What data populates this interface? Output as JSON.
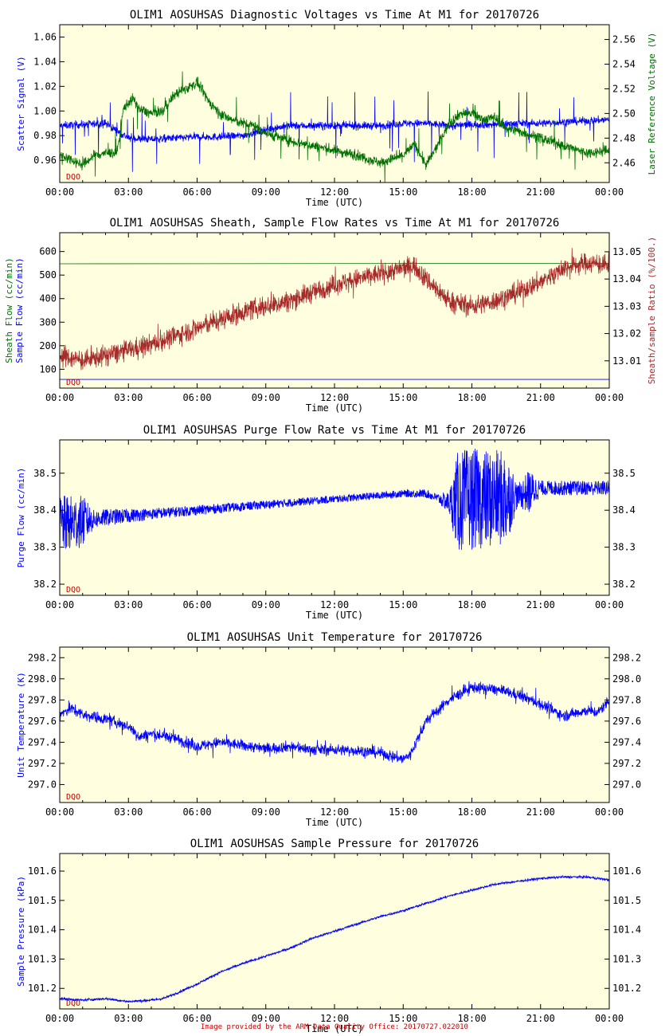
{
  "colors": {
    "plot_bg": "#ffffe0",
    "blue": "#0000ff",
    "green": "#007000",
    "darkred": "#a52a2a",
    "dqo": "#cc0000",
    "axis": "#000000"
  },
  "dqo_label": "DQO",
  "footer": "Image provided by the ARM Data Quality Office: 20170727.022010",
  "x_tick_labels": [
    "00:00",
    "03:00",
    "06:00",
    "09:00",
    "12:00",
    "15:00",
    "18:00",
    "21:00",
    "00:00"
  ],
  "chart_data": [
    {
      "type": "line",
      "title": "OLIM1 AOSUHSAS Diagnostic Voltages vs Time At M1 for 20170726",
      "xlabel": "Time (UTC)",
      "xlim_hours": [
        0,
        24
      ],
      "ylabel_left": "Scatter Signal (V)",
      "ylabel_right": "Laser Reference Voltage (V)",
      "ylim_left": [
        0.942,
        1.07
      ],
      "ylim_right": [
        2.444,
        2.572
      ],
      "yticks_left": [
        0.96,
        0.98,
        1.0,
        1.02,
        1.04,
        1.06
      ],
      "ytick_labels_left": [
        "0.96",
        "0.98",
        "1.00",
        "1.02",
        "1.04",
        "1.06"
      ],
      "yticks_right": [
        2.46,
        2.48,
        2.5,
        2.52,
        2.54,
        2.56
      ],
      "ytick_labels_right": [
        "2.46",
        "2.48",
        "2.50",
        "2.52",
        "2.54",
        "2.56"
      ],
      "series": [
        {
          "name": "Scatter Signal",
          "axis": "left",
          "color": "blue",
          "noise": 0.003,
          "spike": 0.03,
          "spike_rate": 0.03,
          "x": [
            0,
            1,
            2,
            2.5,
            3,
            4,
            5,
            6,
            7,
            8,
            9,
            10,
            12,
            14,
            15,
            16,
            17,
            18,
            19,
            20,
            21,
            22,
            23,
            24
          ],
          "values": [
            0.988,
            0.989,
            0.99,
            0.984,
            0.978,
            0.977,
            0.978,
            0.979,
            0.979,
            0.98,
            0.985,
            0.988,
            0.988,
            0.988,
            0.99,
            0.99,
            0.988,
            0.989,
            0.989,
            0.99,
            0.99,
            0.991,
            0.992,
            0.993
          ]
        },
        {
          "name": "Laser Reference Voltage",
          "axis": "right",
          "color": "green",
          "noise": 0.004,
          "spike": 0.02,
          "spike_rate": 0.02,
          "x": [
            0,
            0.5,
            1,
            1.5,
            2,
            2.5,
            2.8,
            3.2,
            3.5,
            4,
            4.5,
            5,
            5.5,
            6,
            6.5,
            7,
            7.5,
            8,
            8.5,
            9,
            10,
            11,
            12,
            13,
            14,
            15,
            15.5,
            16,
            16.5,
            17,
            17.5,
            18,
            18.5,
            19,
            19.5,
            20,
            21,
            22,
            23,
            24
          ],
          "values": [
            2.466,
            2.463,
            2.458,
            2.466,
            2.468,
            2.468,
            2.505,
            2.512,
            2.503,
            2.5,
            2.502,
            2.515,
            2.52,
            2.525,
            2.51,
            2.5,
            2.495,
            2.492,
            2.49,
            2.484,
            2.478,
            2.474,
            2.47,
            2.466,
            2.46,
            2.466,
            2.475,
            2.458,
            2.474,
            2.492,
            2.5,
            2.5,
            2.495,
            2.497,
            2.488,
            2.486,
            2.48,
            2.474,
            2.468,
            2.47
          ]
        }
      ]
    },
    {
      "type": "line",
      "title": "OLIM1 AOSUHSAS Sheath, Sample Flow Rates vs Time At M1 for 20170726",
      "xlabel": "Time (UTC)",
      "xlim_hours": [
        0,
        24
      ],
      "ylabel_left_lines": [
        {
          "text": "Sheath Flow (cc/min)",
          "color": "green"
        },
        {
          "text": "Sample Flow (cc/min)",
          "color": "blue"
        }
      ],
      "ylabel_right": "Sheath/sample Ratio (%/100.)",
      "ylim_left": [
        20,
        680
      ],
      "ylim_right": [
        13.0,
        13.057
      ],
      "yticks_left": [
        100,
        200,
        300,
        400,
        500,
        600
      ],
      "ytick_labels_left": [
        "100",
        "200",
        "300",
        "400",
        "500",
        "600"
      ],
      "yticks_right": [
        13.01,
        13.02,
        13.03,
        13.04,
        13.05
      ],
      "ytick_labels_right": [
        "13.01",
        "13.02",
        "13.03",
        "13.04",
        "13.05"
      ],
      "series": [
        {
          "name": "Sheath Flow",
          "axis": "left",
          "color": "green",
          "noise": 0,
          "x": [
            0,
            24
          ],
          "values": [
            548,
            550
          ]
        },
        {
          "name": "Sample Flow",
          "axis": "left",
          "color": "blue",
          "noise": 0,
          "x": [
            0,
            24
          ],
          "values": [
            57,
            57
          ]
        },
        {
          "name": "Sheath/sample Ratio",
          "axis": "right",
          "color": "darkred",
          "noise": 0.0035,
          "spike": 0.004,
          "spike_rate": 0.05,
          "x": [
            0,
            1,
            2,
            3,
            4,
            5,
            6,
            7,
            8,
            9,
            10,
            11,
            12,
            13,
            14,
            15,
            15.5,
            16,
            17,
            18,
            19,
            20,
            21,
            22,
            23,
            24
          ],
          "values": [
            13.012,
            13.01,
            13.012,
            13.014,
            13.016,
            13.019,
            13.022,
            13.025,
            13.028,
            13.03,
            13.032,
            13.035,
            13.038,
            13.04,
            13.042,
            13.044,
            13.045,
            13.04,
            13.032,
            13.03,
            13.032,
            13.035,
            13.039,
            13.044,
            13.046,
            13.045
          ]
        }
      ]
    },
    {
      "type": "line",
      "title": "OLIM1 AOSUHSAS Purge Flow Rate vs Time At M1 for 20170726",
      "xlabel": "Time (UTC)",
      "xlim_hours": [
        0,
        24
      ],
      "ylabel_left": "Purge Flow (cc/min)",
      "ylabel_right": "",
      "ylim_left": [
        38.17,
        38.59
      ],
      "yticks_left": [
        38.2,
        38.3,
        38.4,
        38.5
      ],
      "ytick_labels_left": [
        "38.2",
        "38.3",
        "38.4",
        "38.5"
      ],
      "yticks_right": [
        38.2,
        38.3,
        38.4,
        38.5
      ],
      "ytick_labels_right": [
        "38.2",
        "38.3",
        "38.4",
        "38.5"
      ],
      "series": [
        {
          "name": "Purge Flow",
          "axis": "left",
          "color": "blue",
          "x": [
            0,
            1,
            2,
            3,
            4,
            5,
            6,
            7,
            8,
            9,
            10,
            11,
            12,
            13,
            14,
            15,
            16,
            17,
            18,
            19,
            20,
            21,
            22,
            23,
            24
          ],
          "values": [
            38.36,
            38.37,
            38.38,
            38.385,
            38.39,
            38.395,
            38.4,
            38.405,
            38.41,
            38.415,
            38.42,
            38.425,
            38.43,
            38.435,
            38.44,
            38.445,
            38.445,
            38.42,
            38.43,
            38.43,
            38.44,
            38.46,
            38.46,
            38.46,
            38.46
          ],
          "noise_x": [
            0,
            1,
            1.5,
            4,
            8,
            12,
            15,
            16.5,
            17,
            17.4,
            19.5,
            20,
            20.5,
            21,
            22,
            24
          ],
          "noise_values": [
            0.08,
            0.07,
            0.025,
            0.015,
            0.012,
            0.01,
            0.01,
            0.012,
            0.03,
            0.14,
            0.13,
            0.03,
            0.06,
            0.02,
            0.02,
            0.02
          ]
        }
      ]
    },
    {
      "type": "line",
      "title": "OLIM1 AOSUHSAS Unit Temperature for 20170726",
      "xlabel": "Time (UTC)",
      "xlim_hours": [
        0,
        24
      ],
      "ylabel_left": "Unit Temperature (K)",
      "ylabel_right": "",
      "ylim_left": [
        296.83,
        298.3
      ],
      "yticks_left": [
        297.0,
        297.2,
        297.4,
        297.6,
        297.8,
        298.0,
        298.2
      ],
      "ytick_labels_left": [
        "297.0",
        "297.2",
        "297.4",
        "297.6",
        "297.8",
        "298.0",
        "298.2"
      ],
      "yticks_right": [
        297.0,
        297.2,
        297.4,
        297.6,
        297.8,
        298.0,
        298.2
      ],
      "ytick_labels_right": [
        "297.0",
        "297.2",
        "297.4",
        "297.6",
        "297.8",
        "298.0",
        "298.2"
      ],
      "series": [
        {
          "name": "Unit Temperature",
          "axis": "left",
          "color": "blue",
          "noise": 0.05,
          "spike": 0.1,
          "spike_rate": 0.03,
          "x": [
            0,
            0.5,
            1,
            1.5,
            2,
            3,
            3.5,
            4,
            5,
            6,
            7,
            8,
            9,
            10,
            11,
            12,
            13,
            14,
            15,
            15.3,
            16,
            17,
            18,
            19,
            20,
            21,
            22,
            23,
            23.5,
            24
          ],
          "values": [
            297.67,
            297.72,
            297.66,
            297.64,
            297.62,
            297.55,
            297.45,
            297.48,
            297.44,
            297.36,
            297.4,
            297.37,
            297.34,
            297.36,
            297.33,
            297.33,
            297.32,
            297.3,
            297.24,
            297.28,
            297.6,
            297.8,
            297.92,
            297.9,
            297.85,
            297.76,
            297.65,
            297.7,
            297.68,
            297.8
          ]
        }
      ]
    },
    {
      "type": "line",
      "title": "OLIM1 AOSUHSAS Sample Pressure for 20170726",
      "xlabel": "Time (UTC)",
      "xlim_hours": [
        0,
        24
      ],
      "ylabel_left": "Sample Pressure (kPa)",
      "ylabel_right": "",
      "ylim_left": [
        101.13,
        101.66
      ],
      "yticks_left": [
        101.2,
        101.3,
        101.4,
        101.5,
        101.6
      ],
      "ytick_labels_left": [
        "101.2",
        "101.3",
        "101.4",
        "101.5",
        "101.6"
      ],
      "yticks_right": [
        101.2,
        101.3,
        101.4,
        101.5,
        101.6
      ],
      "ytick_labels_right": [
        "101.2",
        "101.3",
        "101.4",
        "101.5",
        "101.6"
      ],
      "series": [
        {
          "name": "Sample Pressure",
          "axis": "left",
          "color": "blue",
          "noise": 0.004,
          "spike": 0,
          "spike_rate": 0,
          "x": [
            0,
            1,
            2,
            3,
            4,
            4.5,
            5,
            6,
            7,
            8,
            9,
            10,
            11,
            12,
            13,
            14,
            15,
            16,
            17,
            18,
            19,
            20,
            21,
            22,
            23,
            24
          ],
          "values": [
            101.165,
            101.16,
            101.165,
            101.155,
            101.16,
            101.165,
            101.18,
            101.215,
            101.255,
            101.285,
            101.31,
            101.335,
            101.37,
            101.395,
            101.42,
            101.445,
            101.465,
            101.49,
            101.515,
            101.535,
            101.555,
            101.565,
            101.575,
            101.58,
            101.58,
            101.57
          ]
        }
      ]
    }
  ]
}
